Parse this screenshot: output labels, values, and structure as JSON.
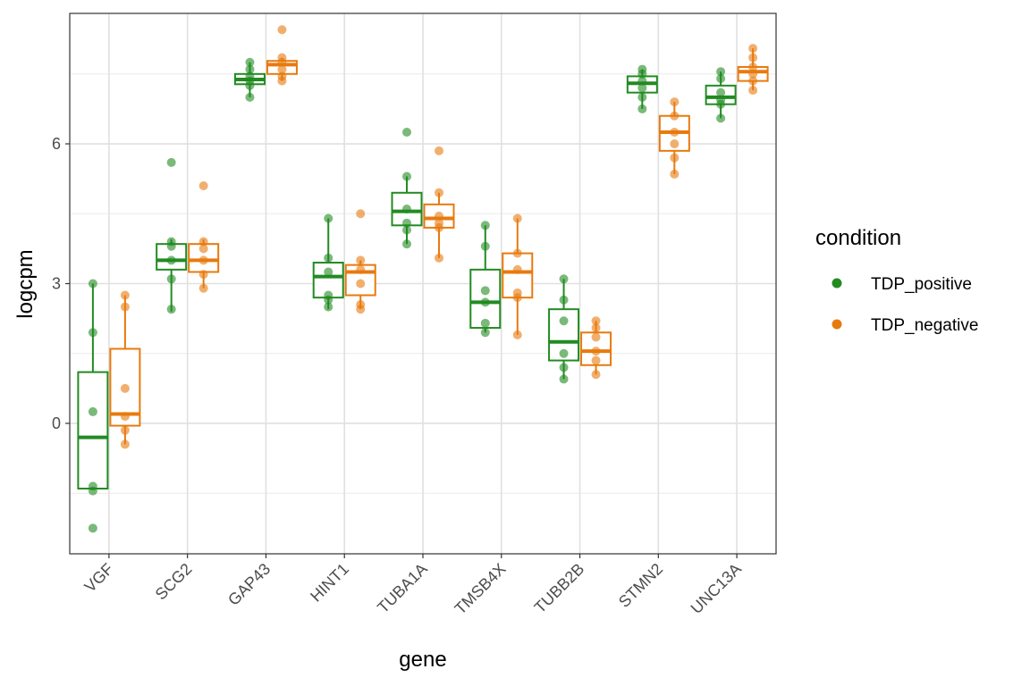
{
  "chart_data": {
    "type": "box",
    "xlabel": "gene",
    "ylabel": "logcpm",
    "categories": [
      "VGF",
      "SCG2",
      "GAP43",
      "HINT1",
      "TUBA1A",
      "TMSB4X",
      "TUBB2B",
      "STMN2",
      "UNC13A"
    ],
    "ylim": [
      -2.8,
      8.8
    ],
    "yticks": [
      0,
      3,
      6
    ],
    "grid": true,
    "legend": {
      "title": "condition",
      "position": "right"
    },
    "series": [
      {
        "name": "TDP_positive",
        "color": "#228B22",
        "boxes": [
          {
            "lower": -1.4,
            "q1": -1.4,
            "median": -0.3,
            "q3": 1.1,
            "upper": 3.0,
            "points": [
              3.0,
              1.95,
              0.25,
              -1.35,
              -1.45,
              -2.25
            ]
          },
          {
            "lower": 2.4,
            "q1": 3.3,
            "median": 3.5,
            "q3": 3.85,
            "upper": 3.95,
            "points": [
              5.6,
              3.9,
              3.8,
              3.5,
              3.1,
              2.45
            ]
          },
          {
            "lower": 7.0,
            "q1": 7.28,
            "median": 7.38,
            "q3": 7.5,
            "upper": 7.75,
            "points": [
              7.75,
              7.6,
              7.45,
              7.35,
              7.25,
              7.0
            ]
          },
          {
            "lower": 2.45,
            "q1": 2.7,
            "median": 3.15,
            "q3": 3.45,
            "upper": 4.4,
            "points": [
              4.4,
              3.55,
              3.25,
              2.75,
              2.65,
              2.5
            ]
          },
          {
            "lower": 3.85,
            "q1": 4.25,
            "median": 4.55,
            "q3": 4.95,
            "upper": 5.3,
            "points": [
              6.25,
              5.3,
              4.6,
              4.3,
              4.15,
              3.85
            ]
          },
          {
            "lower": 1.95,
            "q1": 2.05,
            "median": 2.6,
            "q3": 3.3,
            "upper": 4.25,
            "points": [
              4.25,
              3.8,
              2.85,
              2.6,
              2.15,
              1.95
            ]
          },
          {
            "lower": 0.95,
            "q1": 1.35,
            "median": 1.75,
            "q3": 2.45,
            "upper": 3.1,
            "points": [
              3.1,
              2.65,
              2.2,
              1.5,
              1.2,
              0.95
            ]
          },
          {
            "lower": 6.75,
            "q1": 7.1,
            "median": 7.3,
            "q3": 7.45,
            "upper": 7.6,
            "points": [
              7.6,
              7.5,
              7.35,
              7.2,
              7.0,
              6.75
            ]
          },
          {
            "lower": 6.55,
            "q1": 6.85,
            "median": 7.0,
            "q3": 7.25,
            "upper": 7.55,
            "points": [
              7.55,
              7.4,
              7.1,
              6.95,
              6.85,
              6.55
            ]
          }
        ]
      },
      {
        "name": "TDP_negative",
        "color": "#E87A0E",
        "boxes": [
          {
            "lower": -0.45,
            "q1": -0.05,
            "median": 0.2,
            "q3": 1.6,
            "upper": 2.75,
            "points": [
              2.75,
              2.5,
              0.75,
              0.15,
              -0.15,
              -0.45
            ]
          },
          {
            "lower": 2.9,
            "q1": 3.25,
            "median": 3.5,
            "q3": 3.85,
            "upper": 3.95,
            "points": [
              5.1,
              3.9,
              3.75,
              3.5,
              3.2,
              2.9
            ]
          },
          {
            "lower": 7.35,
            "q1": 7.5,
            "median": 7.7,
            "q3": 7.78,
            "upper": 7.85,
            "points": [
              8.45,
              7.85,
              7.75,
              7.6,
              7.45,
              7.35
            ]
          },
          {
            "lower": 2.45,
            "q1": 2.75,
            "median": 3.25,
            "q3": 3.4,
            "upper": 3.5,
            "points": [
              4.5,
              3.5,
              3.3,
              3.0,
              2.55,
              2.45
            ]
          },
          {
            "lower": 3.55,
            "q1": 4.2,
            "median": 4.4,
            "q3": 4.7,
            "upper": 4.95,
            "points": [
              5.85,
              4.95,
              4.45,
              4.3,
              4.2,
              3.55
            ]
          },
          {
            "lower": 1.9,
            "q1": 2.7,
            "median": 3.25,
            "q3": 3.65,
            "upper": 4.4,
            "points": [
              4.4,
              3.65,
              3.3,
              2.8,
              2.7,
              1.9
            ]
          },
          {
            "lower": 1.05,
            "q1": 1.25,
            "median": 1.55,
            "q3": 1.95,
            "upper": 2.2,
            "points": [
              2.2,
              2.05,
              1.85,
              1.55,
              1.35,
              1.05
            ]
          },
          {
            "lower": 5.35,
            "q1": 5.85,
            "median": 6.25,
            "q3": 6.6,
            "upper": 6.9,
            "points": [
              6.9,
              6.6,
              6.25,
              6.0,
              5.7,
              5.35
            ]
          },
          {
            "lower": 7.15,
            "q1": 7.35,
            "median": 7.55,
            "q3": 7.65,
            "upper": 8.05,
            "points": [
              8.05,
              7.85,
              7.65,
              7.5,
              7.35,
              7.15
            ]
          }
        ]
      }
    ]
  }
}
